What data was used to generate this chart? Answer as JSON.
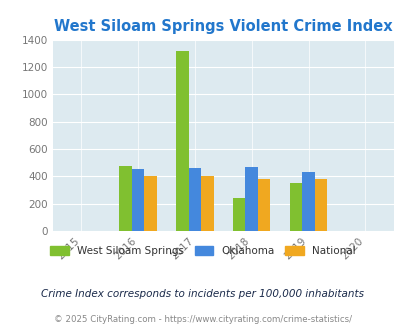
{
  "title": "West Siloam Springs Violent Crime Index",
  "years": [
    2015,
    2016,
    2017,
    2018,
    2019,
    2020
  ],
  "data": {
    "West Siloam Springs": {
      "2016": 478,
      "2017": 1315,
      "2018": 238,
      "2019": 348
    },
    "Oklahoma": {
      "2016": 450,
      "2017": 460,
      "2018": 468,
      "2019": 435
    },
    "National": {
      "2016": 400,
      "2017": 400,
      "2018": 383,
      "2019": 379
    }
  },
  "colors": {
    "West Siloam Springs": "#80c030",
    "Oklahoma": "#4488dd",
    "National": "#f0a820"
  },
  "ylim": [
    0,
    1400
  ],
  "yticks": [
    0,
    200,
    400,
    600,
    800,
    1000,
    1200,
    1400
  ],
  "xlim_min": 2015,
  "xlim_max": 2020,
  "background_color": "#ddeaf0",
  "title_color": "#2277cc",
  "subtitle": "Crime Index corresponds to incidents per 100,000 inhabitants",
  "footer": "© 2025 CityRating.com - https://www.cityrating.com/crime-statistics/",
  "subtitle_color": "#1a2a4a",
  "footer_color": "#888888",
  "footer_link_color": "#4488cc",
  "bar_width": 0.22,
  "plot_years": [
    2016,
    2017,
    2018,
    2019
  ]
}
